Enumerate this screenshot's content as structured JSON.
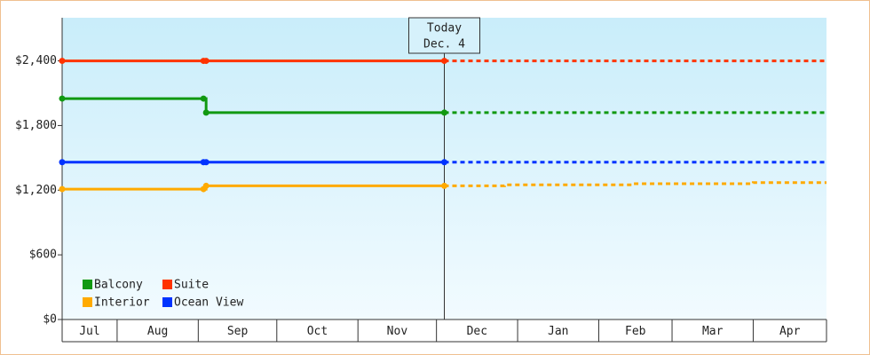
{
  "chart_data": {
    "type": "line",
    "step": true,
    "x": [
      0,
      54,
      55,
      146,
      169,
      218,
      264,
      292
    ],
    "xlim": [
      0,
      292
    ],
    "xticks": [
      {
        "value": 0,
        "label": "Jul"
      },
      {
        "value": 21,
        "label": "Aug"
      },
      {
        "value": 52,
        "label": "Sep"
      },
      {
        "value": 82,
        "label": "Oct"
      },
      {
        "value": 113,
        "label": "Nov"
      },
      {
        "value": 143,
        "label": "Dec"
      },
      {
        "value": 174,
        "label": "Jan"
      },
      {
        "value": 205,
        "label": "Feb"
      },
      {
        "value": 233,
        "label": "Mar"
      },
      {
        "value": 264,
        "label": "Apr"
      }
    ],
    "ylim": [
      0,
      2800
    ],
    "yticks": [
      {
        "value": 0,
        "label": "$0"
      },
      {
        "value": 600,
        "label": "$600"
      },
      {
        "value": 1200,
        "label": "$1,200"
      },
      {
        "value": 1800,
        "label": "$1,800"
      },
      {
        "value": 2400,
        "label": "$2,400"
      }
    ],
    "annotation": {
      "text": [
        "Today",
        "Dec. 4"
      ],
      "x": 146
    },
    "legend": "lower left",
    "series": [
      {
        "name": "Balcony",
        "color": "#119911",
        "values": [
          2050,
          2050,
          1920,
          1920,
          1920,
          1920,
          1920,
          1920
        ]
      },
      {
        "name": "Suite",
        "color": "#ff3300",
        "values": [
          2400,
          2400,
          2400,
          2400,
          2400,
          2400,
          2400,
          2400
        ]
      },
      {
        "name": "Interior",
        "color": "#ffaa00",
        "values": [
          1210,
          1210,
          1240,
          1240,
          1250,
          1260,
          1270,
          1270
        ]
      },
      {
        "name": "Ocean View",
        "color": "#0033ff",
        "values": [
          1460,
          1460,
          1460,
          1460,
          1460,
          1460,
          1460,
          1460
        ]
      }
    ]
  }
}
